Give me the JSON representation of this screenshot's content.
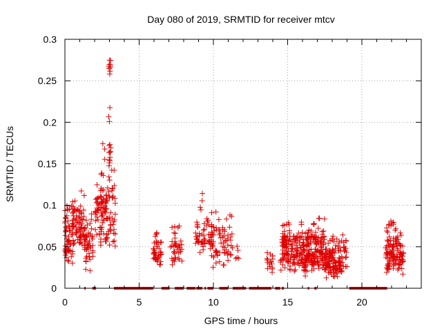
{
  "chart_data": {
    "type": "scatter",
    "title": "Day 080 of 2019, SRMTID for receiver mtcv",
    "xlabel": "GPS time / hours",
    "ylabel": "SRMTID / TECUs",
    "xlim": [
      0,
      24
    ],
    "ylim": [
      0,
      0.3
    ],
    "xticks": [
      0,
      5,
      10,
      15,
      20
    ],
    "xtick_labels": [
      "0",
      "5",
      "10",
      "15",
      "20"
    ],
    "yticks": [
      0,
      0.05,
      0.1,
      0.15,
      0.2,
      0.25,
      0.3
    ],
    "ytick_labels": [
      "0",
      "0.05",
      "0.1",
      "0.15",
      "0.2",
      "0.25",
      "0.3"
    ],
    "grid": true,
    "marker": "plus",
    "series_color": "#e00000",
    "series": [
      {
        "name": "SRMTID",
        "clusters": [
          {
            "x0": 0.0,
            "x1": 0.6,
            "ymin": 0.03,
            "ymax": 0.1,
            "ycenter": 0.06,
            "n": 70
          },
          {
            "x0": 0.5,
            "x1": 0.7,
            "ymin": 0.05,
            "ymax": 0.128,
            "ycenter": 0.09,
            "n": 14
          },
          {
            "x0": 0.7,
            "x1": 1.3,
            "ymin": 0.04,
            "ymax": 0.12,
            "ycenter": 0.075,
            "n": 55
          },
          {
            "x0": 1.3,
            "x1": 1.9,
            "ymin": 0.02,
            "ymax": 0.09,
            "ycenter": 0.048,
            "n": 50
          },
          {
            "x0": 2.0,
            "x1": 2.5,
            "ymin": 0.05,
            "ymax": 0.13,
            "ycenter": 0.09,
            "n": 35
          },
          {
            "x0": 2.4,
            "x1": 3.4,
            "ymin": 0.05,
            "ymax": 0.175,
            "ycenter": 0.09,
            "n": 95
          },
          {
            "x0": 2.9,
            "x1": 3.1,
            "ymin": 0.14,
            "ymax": 0.22,
            "ycenter": 0.17,
            "n": 12
          },
          {
            "x0": 2.95,
            "x1": 3.1,
            "ymin": 0.255,
            "ymax": 0.282,
            "ycenter": 0.268,
            "n": 10
          },
          {
            "x0": 5.9,
            "x1": 6.5,
            "ymin": 0.026,
            "ymax": 0.067,
            "ycenter": 0.045,
            "n": 45
          },
          {
            "x0": 7.1,
            "x1": 7.9,
            "ymin": 0.028,
            "ymax": 0.075,
            "ycenter": 0.045,
            "n": 40
          },
          {
            "x0": 8.8,
            "x1": 9.9,
            "ymin": 0.04,
            "ymax": 0.095,
            "ycenter": 0.065,
            "n": 50
          },
          {
            "x0": 9.1,
            "x1": 9.3,
            "ymin": 0.095,
            "ymax": 0.115,
            "ycenter": 0.105,
            "n": 3
          },
          {
            "x0": 9.8,
            "x1": 11.3,
            "ymin": 0.025,
            "ymax": 0.095,
            "ycenter": 0.055,
            "n": 70
          },
          {
            "x0": 11.5,
            "x1": 11.8,
            "ymin": 0.035,
            "ymax": 0.055,
            "ycenter": 0.045,
            "n": 5
          },
          {
            "x0": 13.6,
            "x1": 14.0,
            "ymin": 0.018,
            "ymax": 0.045,
            "ycenter": 0.032,
            "n": 18
          },
          {
            "x0": 14.5,
            "x1": 16.5,
            "ymin": 0.02,
            "ymax": 0.08,
            "ycenter": 0.047,
            "n": 210
          },
          {
            "x0": 16.0,
            "x1": 16.3,
            "ymin": 0.008,
            "ymax": 0.03,
            "ycenter": 0.02,
            "n": 4
          },
          {
            "x0": 16.5,
            "x1": 17.5,
            "ymin": 0.02,
            "ymax": 0.085,
            "ycenter": 0.045,
            "n": 110
          },
          {
            "x0": 17.5,
            "x1": 19.0,
            "ymin": 0.012,
            "ymax": 0.065,
            "ycenter": 0.033,
            "n": 140
          },
          {
            "x0": 21.6,
            "x1": 22.8,
            "ymin": 0.015,
            "ymax": 0.082,
            "ycenter": 0.04,
            "n": 130
          }
        ]
      }
    ],
    "zero_rug_segments": [
      [
        1.3,
        1.4
      ],
      [
        1.85,
        2.1
      ],
      [
        3.3,
        5.95
      ],
      [
        6.5,
        7.05
      ],
      [
        7.4,
        8.0
      ],
      [
        8.2,
        8.8
      ],
      [
        8.85,
        9.25
      ],
      [
        9.4,
        9.5
      ],
      [
        9.6,
        10.0
      ],
      [
        10.4,
        11.0
      ],
      [
        11.3,
        12.2
      ],
      [
        12.4,
        13.9
      ],
      [
        14.15,
        14.5
      ],
      [
        14.6,
        14.75
      ],
      [
        16.35,
        16.45
      ],
      [
        16.8,
        16.95
      ],
      [
        19.15,
        21.7
      ]
    ]
  }
}
